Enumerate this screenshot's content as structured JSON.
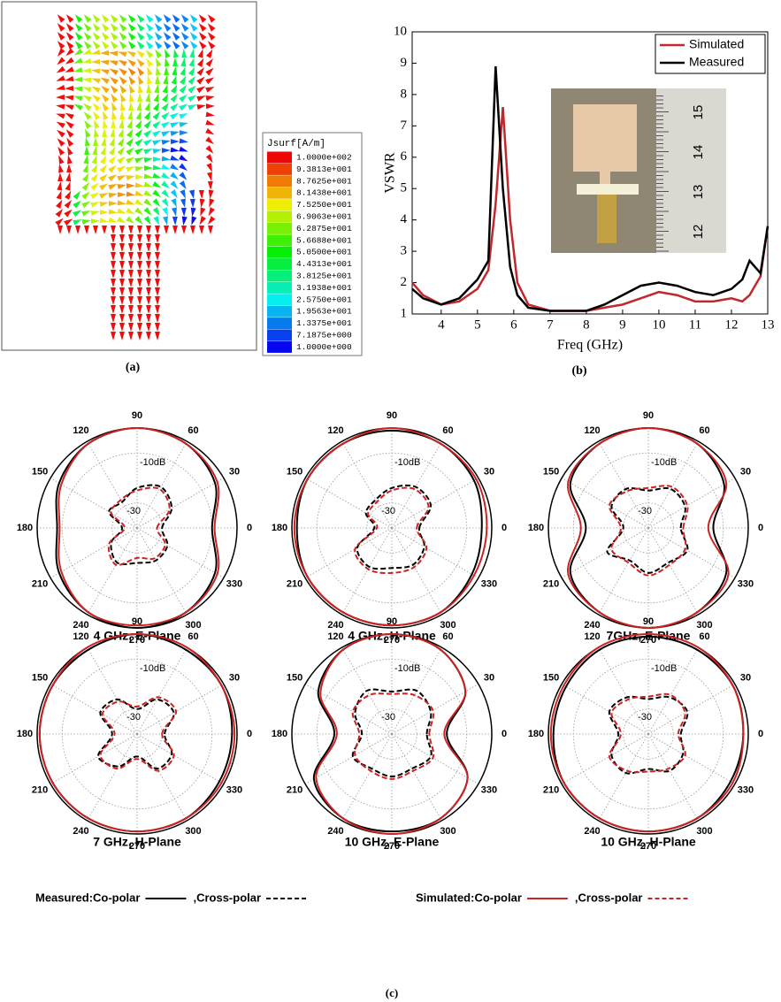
{
  "panel_a": {
    "colorbar_title": "Jsurf[A/m]",
    "colorbar_labels": [
      "1.0000e+002",
      "9.3813e+001",
      "8.7625e+001",
      "8.1438e+001",
      "7.5250e+001",
      "6.9063e+001",
      "6.2875e+001",
      "5.6688e+001",
      "5.0500e+001",
      "4.4313e+001",
      "3.8125e+001",
      "3.1938e+001",
      "2.5750e+001",
      "1.9563e+001",
      "1.3375e+001",
      "7.1875e+000",
      "1.0000e+000"
    ],
    "caption": "(a)"
  },
  "panel_b": {
    "caption": "(b)",
    "inset_ruler_labels": [
      "12",
      "13",
      "14",
      "15"
    ]
  },
  "panel_c": {
    "caption": "(c)",
    "legend": [
      {
        "label": "Measured:Co-polar",
        "color": "#000000",
        "dashed": false
      },
      {
        "label": ",Cross-polar",
        "color": "#000000",
        "dashed": true
      },
      {
        "label": "Simulated:Co-polar",
        "color": "#cc2222",
        "dashed": false
      },
      {
        "label": ",Cross-polar",
        "color": "#cc2222",
        "dashed": true
      }
    ]
  },
  "chart_data": [
    {
      "type": "line",
      "xlabel": "Freq (GHz)",
      "ylabel": "VSWR",
      "xlim": [
        3.2,
        13
      ],
      "ylim": [
        1,
        10
      ],
      "xticks": [
        4,
        5,
        6,
        7,
        8,
        9,
        10,
        11,
        12,
        13
      ],
      "yticks": [
        1,
        2,
        3,
        4,
        5,
        6,
        7,
        8,
        9,
        10
      ],
      "legend": "top-right",
      "x": [
        3.2,
        3.5,
        4,
        4.5,
        5,
        5.3,
        5.5,
        5.7,
        5.9,
        6.1,
        6.4,
        7,
        8,
        8.5,
        9,
        9.5,
        10,
        10.5,
        11,
        11.5,
        12,
        12.3,
        12.5,
        12.8,
        13
      ],
      "series": [
        {
          "name": "Simulated",
          "color": "#c0282d",
          "values": [
            2.0,
            1.6,
            1.3,
            1.4,
            1.8,
            2.4,
            4.5,
            7.6,
            4.0,
            2.0,
            1.3,
            1.1,
            1.1,
            1.2,
            1.3,
            1.5,
            1.7,
            1.6,
            1.4,
            1.4,
            1.5,
            1.4,
            1.6,
            2.2,
            3.8
          ]
        },
        {
          "name": "Measured",
          "color": "#000000",
          "values": [
            1.8,
            1.5,
            1.3,
            1.5,
            2.1,
            2.7,
            8.9,
            5.0,
            2.5,
            1.6,
            1.2,
            1.1,
            1.1,
            1.3,
            1.6,
            1.9,
            2.0,
            1.9,
            1.7,
            1.6,
            1.8,
            2.1,
            2.7,
            2.3,
            3.8
          ]
        }
      ]
    },
    {
      "type": "polar",
      "title": "4 GHz, E-Plane",
      "theta": [
        0,
        30,
        60,
        90,
        120,
        150,
        180,
        210,
        240,
        270,
        300,
        330
      ],
      "thetaticks": [
        0,
        30,
        60,
        90,
        120,
        150,
        180,
        210,
        240,
        270,
        300,
        330
      ],
      "rlim": [
        -40,
        0
      ],
      "rticks": [
        {
          "value": -10,
          "label": "-10dB"
        },
        -30
      ],
      "series": [
        {
          "color": "#000000",
          "dashed": false,
          "values": [
            -10,
            -4,
            -1,
            0,
            -1,
            -4,
            -8,
            -4,
            -1,
            0,
            -1,
            -4
          ]
        },
        {
          "color": "#000000",
          "dashed": true,
          "values": [
            -30,
            -24,
            -21,
            -24,
            -28,
            -27,
            -34,
            -28,
            -24,
            -26,
            -25,
            -26
          ]
        },
        {
          "color": "#cc2222",
          "dashed": false,
          "values": [
            -9,
            -3,
            -1,
            0,
            -1,
            -5,
            -9,
            -5,
            -1,
            -1,
            -1,
            -3
          ]
        },
        {
          "color": "#cc2222",
          "dashed": true,
          "values": [
            -32,
            -25,
            -22,
            -25,
            -27,
            -28,
            -35,
            -27,
            -23,
            -28,
            -26,
            -27
          ]
        }
      ]
    },
    {
      "type": "polar",
      "title": "4 GHz, H-Plane",
      "theta": [
        0,
        30,
        60,
        90,
        120,
        150,
        180,
        210,
        240,
        270,
        300,
        330
      ],
      "thetaticks": [
        0,
        30,
        60,
        90,
        120,
        150,
        180,
        210,
        240,
        270,
        300,
        330
      ],
      "rlim": [
        -40,
        0
      ],
      "rticks": [
        {
          "value": -10,
          "label": "-10dB"
        },
        -30
      ],
      "series": [
        {
          "color": "#000000",
          "dashed": false,
          "values": [
            -4,
            -2,
            -1,
            -1,
            -1,
            -1,
            -2,
            -1,
            -1,
            -1,
            -1,
            -3
          ]
        },
        {
          "color": "#000000",
          "dashed": true,
          "values": [
            -29,
            -22,
            -21,
            -24,
            -27,
            -28,
            -33,
            -24,
            -22,
            -24,
            -23,
            -25
          ]
        },
        {
          "color": "#cc2222",
          "dashed": false,
          "values": [
            -2,
            -1,
            -1,
            0,
            -1,
            -1,
            -1,
            -1,
            -1,
            -1,
            -1,
            -2
          ]
        },
        {
          "color": "#cc2222",
          "dashed": true,
          "values": [
            -30,
            -23,
            -22,
            -25,
            -28,
            -29,
            -34,
            -23,
            -21,
            -22,
            -22,
            -24
          ]
        }
      ]
    },
    {
      "type": "polar",
      "title": "7GHz, E-Plane",
      "theta": [
        0,
        30,
        60,
        90,
        120,
        150,
        180,
        210,
        240,
        270,
        300,
        330
      ],
      "thetaticks": [
        0,
        30,
        60,
        90,
        120,
        150,
        180,
        210,
        240,
        270,
        300,
        330
      ],
      "rlim": [
        -40,
        0
      ],
      "rticks": [
        {
          "value": -10,
          "label": "-10dB"
        },
        -30
      ],
      "series": [
        {
          "color": "#000000",
          "dashed": false,
          "values": [
            -14,
            -5,
            -1,
            0,
            -1,
            -4,
            -15,
            -4,
            -1,
            0,
            -1,
            -4
          ]
        },
        {
          "color": "#000000",
          "dashed": true,
          "values": [
            -27,
            -23,
            -22,
            -25,
            -22,
            -23,
            -30,
            -21,
            -25,
            -22,
            -24,
            -22
          ]
        },
        {
          "color": "#cc2222",
          "dashed": false,
          "values": [
            -16,
            -4,
            -1,
            0,
            -1,
            -3,
            -13,
            -3,
            -1,
            0,
            -1,
            -3
          ]
        },
        {
          "color": "#cc2222",
          "dashed": true,
          "values": [
            -26,
            -22,
            -21,
            -24,
            -23,
            -22,
            -29,
            -23,
            -24,
            -21,
            -23,
            -23
          ]
        }
      ]
    },
    {
      "type": "polar",
      "title": "7 GHz, H-Plane",
      "theta": [
        0,
        30,
        60,
        90,
        120,
        150,
        180,
        210,
        240,
        270,
        300,
        330
      ],
      "thetaticks": [
        0,
        30,
        60,
        90,
        120,
        150,
        180,
        210,
        240,
        270,
        300,
        330
      ],
      "rlim": [
        -40,
        0
      ],
      "rticks": [
        {
          "value": -10,
          "label": "-10dB"
        },
        -30
      ],
      "series": [
        {
          "color": "#000000",
          "dashed": false,
          "values": [
            -2,
            -1,
            -1,
            0,
            -1,
            -1,
            -1,
            -1,
            -1,
            -1,
            -1,
            -2
          ]
        },
        {
          "color": "#000000",
          "dashed": true,
          "values": [
            -29,
            -23,
            -24,
            -30,
            -24,
            -23,
            -30,
            -22,
            -25,
            -31,
            -24,
            -24
          ]
        },
        {
          "color": "#cc2222",
          "dashed": false,
          "values": [
            -1,
            -1,
            0,
            0,
            0,
            -1,
            -1,
            -1,
            -1,
            -1,
            -1,
            -1
          ]
        },
        {
          "color": "#cc2222",
          "dashed": true,
          "values": [
            -30,
            -22,
            -23,
            -29,
            -25,
            -24,
            -31,
            -23,
            -24,
            -30,
            -23,
            -23
          ]
        }
      ]
    },
    {
      "type": "polar",
      "title": "10 GHz, E-Plane",
      "theta": [
        0,
        30,
        60,
        90,
        120,
        150,
        180,
        210,
        240,
        270,
        300,
        330
      ],
      "thetaticks": [
        0,
        30,
        60,
        90,
        120,
        150,
        180,
        210,
        240,
        270,
        300,
        330
      ],
      "rlim": [
        -40,
        0
      ],
      "rticks": [
        {
          "value": -10,
          "label": "-10dB"
        },
        -30
      ],
      "series": [
        {
          "color": "#000000",
          "dashed": false,
          "values": [
            -18,
            -6,
            -1,
            0,
            -1,
            -6,
            -17,
            -4,
            -1,
            -1,
            -1,
            -5
          ]
        },
        {
          "color": "#000000",
          "dashed": true,
          "values": [
            -26,
            -22,
            -20,
            -23,
            -20,
            -23,
            -28,
            -22,
            -24,
            -23,
            -24,
            -22
          ]
        },
        {
          "color": "#cc2222",
          "dashed": false,
          "values": [
            -19,
            -6,
            -1,
            0,
            -1,
            -7,
            -18,
            -5,
            -1,
            0,
            -1,
            -5
          ]
        },
        {
          "color": "#cc2222",
          "dashed": true,
          "values": [
            -25,
            -21,
            -22,
            -24,
            -22,
            -22,
            -27,
            -23,
            -23,
            -22,
            -23,
            -21
          ]
        }
      ]
    },
    {
      "type": "polar",
      "title": "10 GHz, H-Plane",
      "theta": [
        0,
        30,
        60,
        90,
        120,
        150,
        180,
        210,
        240,
        270,
        300,
        330
      ],
      "thetaticks": [
        0,
        30,
        60,
        90,
        120,
        150,
        180,
        210,
        240,
        270,
        300,
        330
      ],
      "rlim": [
        -40,
        0
      ],
      "rticks": [
        {
          "value": -10,
          "label": "-10dB"
        },
        -30
      ],
      "series": [
        {
          "color": "#000000",
          "dashed": false,
          "values": [
            -2,
            -1,
            -1,
            -1,
            -1,
            -2,
            -2,
            -1,
            -1,
            -1,
            -1,
            -2
          ]
        },
        {
          "color": "#000000",
          "dashed": true,
          "values": [
            -27,
            -22,
            -23,
            -26,
            -23,
            -22,
            -28,
            -23,
            -22,
            -26,
            -23,
            -24
          ]
        },
        {
          "color": "#cc2222",
          "dashed": false,
          "values": [
            -2,
            -1,
            0,
            0,
            0,
            -1,
            -1,
            -1,
            -1,
            -1,
            -1,
            -1
          ]
        },
        {
          "color": "#cc2222",
          "dashed": true,
          "values": [
            -28,
            -23,
            -22,
            -25,
            -24,
            -23,
            -29,
            -22,
            -23,
            -25,
            -24,
            -23
          ]
        }
      ]
    }
  ]
}
